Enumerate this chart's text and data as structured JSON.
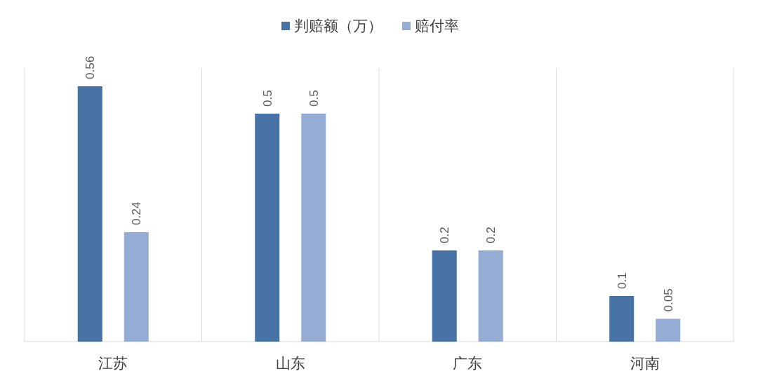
{
  "chart_data": {
    "type": "bar",
    "categories": [
      "江苏",
      "山东",
      "广东",
      "河南"
    ],
    "series": [
      {
        "name": "判赔额（万）",
        "color": "#4672a6",
        "values": [
          0.56,
          0.5,
          0.2,
          0.1
        ]
      },
      {
        "name": "赔付率",
        "color": "#95acd4",
        "values": [
          0.24,
          0.5,
          0.2,
          0.05
        ]
      }
    ],
    "ylim": [
      0,
      0.6
    ],
    "data_labels": true,
    "legend": "top",
    "tick_labels": "x"
  }
}
